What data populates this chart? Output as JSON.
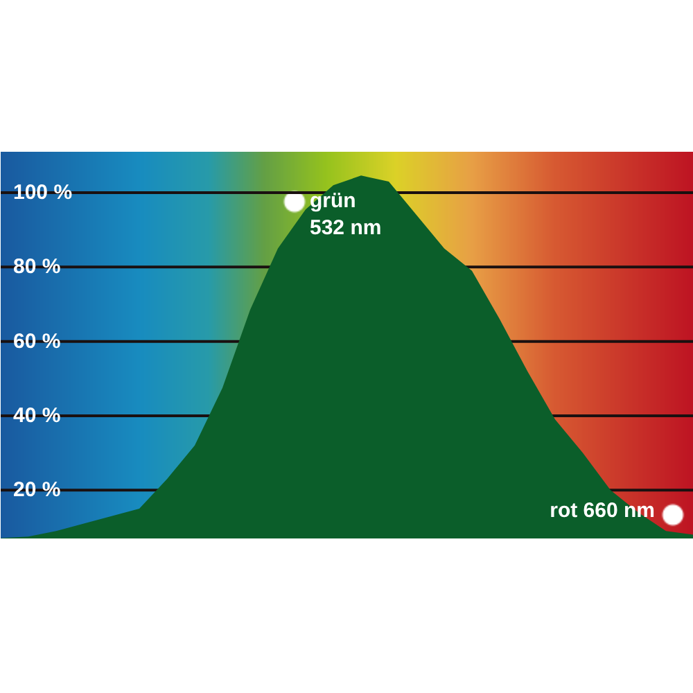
{
  "chart_data": {
    "type": "area",
    "categories": [
      null,
      null,
      null,
      null,
      null,
      null,
      null,
      null,
      null,
      null,
      null,
      null,
      null,
      null,
      null,
      null,
      null,
      null,
      null,
      null,
      null,
      null,
      null,
      null,
      null,
      null
    ],
    "series": [
      {
        "color": "#0b5e2a",
        "values": [
          7.1,
          7.5,
          9,
          11,
          13,
          15,
          23,
          32,
          47.5,
          68.5,
          85,
          95.5,
          102,
          104.6,
          103,
          94,
          85,
          79,
          66,
          52,
          39,
          30,
          20,
          14,
          9,
          8
        ]
      }
    ],
    "annotations": [
      "grün\n532 nm",
      "rot 660 nm"
    ],
    "ylim": [
      7,
      111
    ],
    "yticks": [
      {
        "value": 20,
        "label": "20 %"
      },
      {
        "value": 40,
        "label": "40 %"
      },
      {
        "value": 60,
        "label": "60 %"
      },
      {
        "value": 80,
        "label": "80 %"
      },
      {
        "value": 100,
        "label": "100 %"
      }
    ],
    "tick_labels": "y",
    "grid": "y"
  }
}
